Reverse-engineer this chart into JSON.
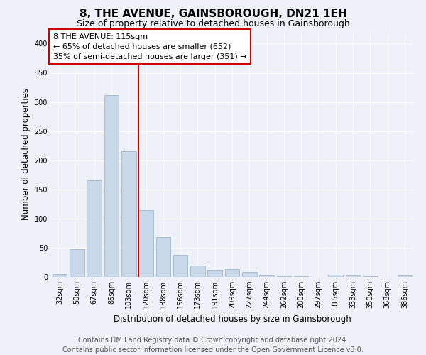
{
  "title": "8, THE AVENUE, GAINSBOROUGH, DN21 1EH",
  "subtitle": "Size of property relative to detached houses in Gainsborough",
  "xlabel": "Distribution of detached houses by size in Gainsborough",
  "ylabel": "Number of detached properties",
  "bar_labels": [
    "32sqm",
    "50sqm",
    "67sqm",
    "85sqm",
    "103sqm",
    "120sqm",
    "138sqm",
    "156sqm",
    "173sqm",
    "191sqm",
    "209sqm",
    "227sqm",
    "244sqm",
    "262sqm",
    "280sqm",
    "297sqm",
    "315sqm",
    "333sqm",
    "350sqm",
    "368sqm",
    "386sqm"
  ],
  "bar_values": [
    5,
    47,
    165,
    312,
    215,
    114,
    68,
    38,
    20,
    12,
    14,
    8,
    3,
    1,
    1,
    0,
    4,
    3,
    1,
    0,
    3
  ],
  "bar_color": "#c8d8e8",
  "bar_edge_color": "#a0b8cc",
  "vline_x": 4.55,
  "vline_color": "#cc0000",
  "annotation_text": "8 THE AVENUE: 115sqm\n← 65% of detached houses are smaller (652)\n35% of semi-detached houses are larger (351) →",
  "annotation_box_color": "#ffffff",
  "annotation_box_edge": "#cc0000",
  "annotation_fontsize": 8,
  "ylim": [
    0,
    420
  ],
  "yticks": [
    0,
    50,
    100,
    150,
    200,
    250,
    300,
    350,
    400
  ],
  "background_color": "#eef2f8",
  "grid_color": "#ffffff",
  "footer_text": "Contains HM Land Registry data © Crown copyright and database right 2024.\nContains public sector information licensed under the Open Government Licence v3.0.",
  "title_fontsize": 11,
  "subtitle_fontsize": 9,
  "xlabel_fontsize": 8.5,
  "ylabel_fontsize": 8.5,
  "tick_fontsize": 7,
  "footer_fontsize": 7
}
